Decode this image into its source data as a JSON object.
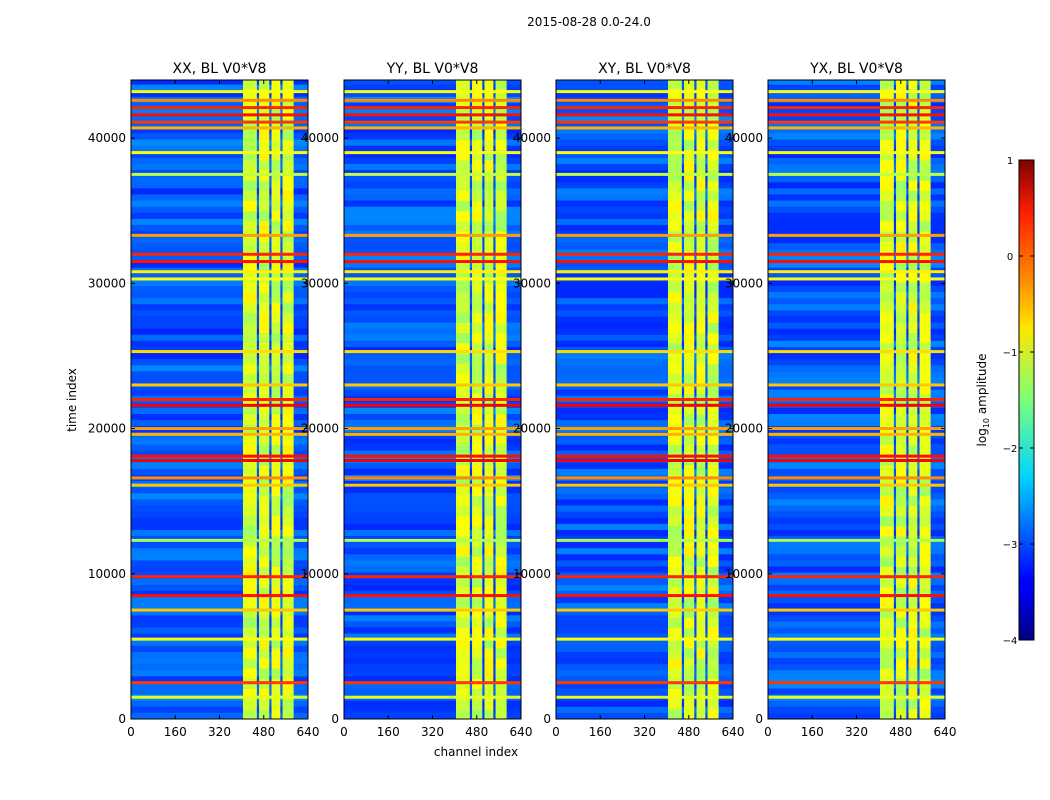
{
  "suptitle": "2015-08-28 0.0-24.0",
  "chart_data": {
    "type": "heatmap",
    "title": "2015-08-28 0.0-24.0",
    "xlabel": "channel index",
    "ylabel": "time index",
    "xlim": [
      0,
      640
    ],
    "ylim": [
      0,
      44000
    ],
    "xticks": [
      0,
      160,
      320,
      480,
      640
    ],
    "yticks": [
      0,
      10000,
      20000,
      30000,
      40000
    ],
    "xtick_labels": [
      "0",
      "160",
      "320",
      "480",
      "640"
    ],
    "ytick_labels": [
      "0",
      "10000",
      "20000",
      "30000",
      "40000"
    ],
    "colorscale": "jet",
    "colorbar": {
      "label": "log10 amplitude",
      "label_text": "log",
      "label_sub": "10",
      "label_rest": " amplitude",
      "range": [
        -4,
        1
      ],
      "ticks": [
        1,
        0,
        -1,
        -2,
        -3,
        -4
      ],
      "tick_labels": [
        "1",
        "0",
        "−1",
        "−2",
        "−3",
        "−4"
      ]
    },
    "panels": [
      {
        "title": "XX, BL V0*V8",
        "polarization": "XX",
        "baseline": "V0*V8"
      },
      {
        "title": "YY, BL V0*V8",
        "polarization": "YY",
        "baseline": "V0*V8"
      },
      {
        "title": "XY, BL V0*V8",
        "polarization": "XY",
        "baseline": "V0*V8"
      },
      {
        "title": "YX, BL V0*V8",
        "polarization": "YX",
        "baseline": "V0*V8"
      }
    ],
    "bright_channel_band": [
      405,
      595
    ],
    "channel_gaps": [
      [
        455,
        463
      ],
      [
        500,
        508
      ],
      [
        540,
        548
      ],
      [
        588,
        596
      ]
    ],
    "rfi_rows": [
      {
        "t": 43200,
        "value": -0.9
      },
      {
        "t": 42600,
        "value": -0.3
      },
      {
        "t": 42100,
        "value": 0.2
      },
      {
        "t": 41600,
        "value": 0.3
      },
      {
        "t": 41100,
        "value": 0.1
      },
      {
        "t": 40700,
        "value": -0.5
      },
      {
        "t": 39000,
        "value": -0.9
      },
      {
        "t": 37500,
        "value": -1.2
      },
      {
        "t": 33300,
        "value": -0.4
      },
      {
        "t": 32000,
        "value": 0.2
      },
      {
        "t": 31500,
        "value": 0.3
      },
      {
        "t": 30800,
        "value": -0.8
      },
      {
        "t": 30300,
        "value": -0.9
      },
      {
        "t": 25300,
        "value": -0.7
      },
      {
        "t": 23000,
        "value": -0.6
      },
      {
        "t": 22000,
        "value": 0.2
      },
      {
        "t": 21600,
        "value": 0.4
      },
      {
        "t": 20000,
        "value": -0.4
      },
      {
        "t": 19600,
        "value": -0.5
      },
      {
        "t": 18100,
        "value": 0.3
      },
      {
        "t": 17800,
        "value": 0.4
      },
      {
        "t": 16600,
        "value": -0.3
      },
      {
        "t": 16100,
        "value": -0.6
      },
      {
        "t": 12300,
        "value": -1.3
      },
      {
        "t": 9800,
        "value": 0.2
      },
      {
        "t": 8500,
        "value": 0.3
      },
      {
        "t": 7500,
        "value": -0.6
      },
      {
        "t": 5500,
        "value": -0.9
      },
      {
        "t": 2500,
        "value": 0.1
      },
      {
        "t": 1500,
        "value": -1.0
      }
    ]
  }
}
